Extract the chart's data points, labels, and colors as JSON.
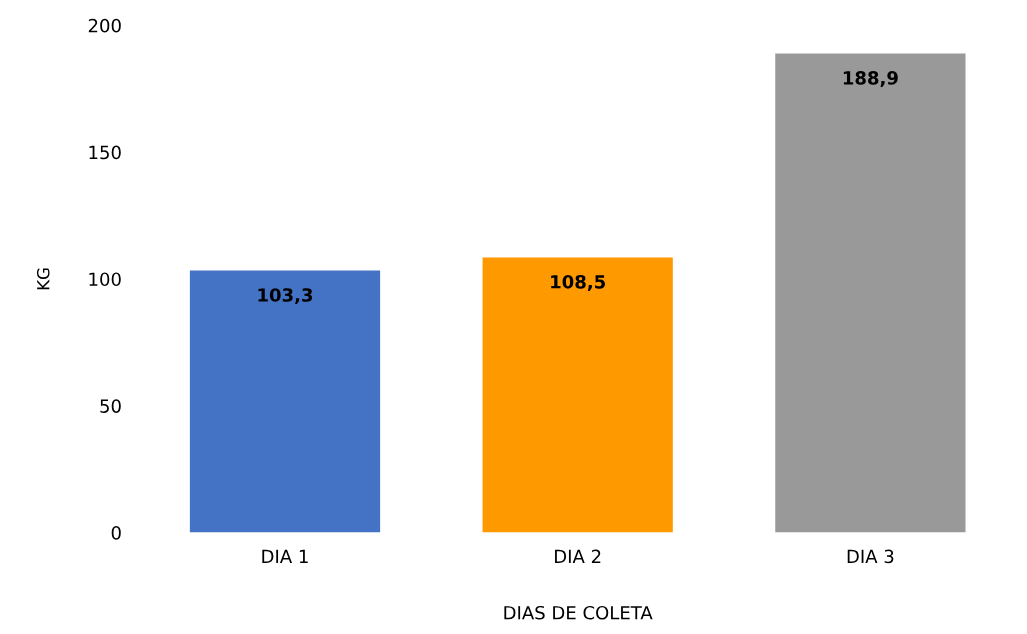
{
  "chart_data": {
    "type": "bar",
    "categories": [
      "DIA 1",
      "DIA 2",
      "DIA 3"
    ],
    "values": [
      103.3,
      108.5,
      188.9
    ],
    "colors": [
      "#4472c4",
      "#ff9900",
      "#999999"
    ],
    "value_labels": [
      "103,3",
      "108,5",
      "188,9"
    ],
    "xlabel": "DIAS DE COLETA",
    "ylabel": "KG",
    "ylim": [
      0,
      200
    ],
    "yticks": [
      0,
      50,
      100,
      150,
      200
    ],
    "grid": false
  }
}
